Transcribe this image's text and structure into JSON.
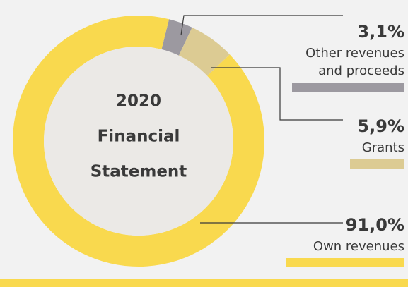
{
  "chart_data": {
    "type": "pie",
    "donut": true,
    "title_lines": [
      "2020",
      "Financial",
      "Statement"
    ],
    "categories": [
      [
        "Other revenues",
        "and proceeds"
      ],
      [
        "Grants"
      ],
      [
        "Own revenues"
      ]
    ],
    "values": [
      3.1,
      5.9,
      91.0
    ],
    "value_labels": [
      "3,1%",
      "5,9%",
      "91,0%"
    ],
    "colors": [
      "#9c99a0",
      "#dccb93",
      "#f9d94e"
    ]
  }
}
